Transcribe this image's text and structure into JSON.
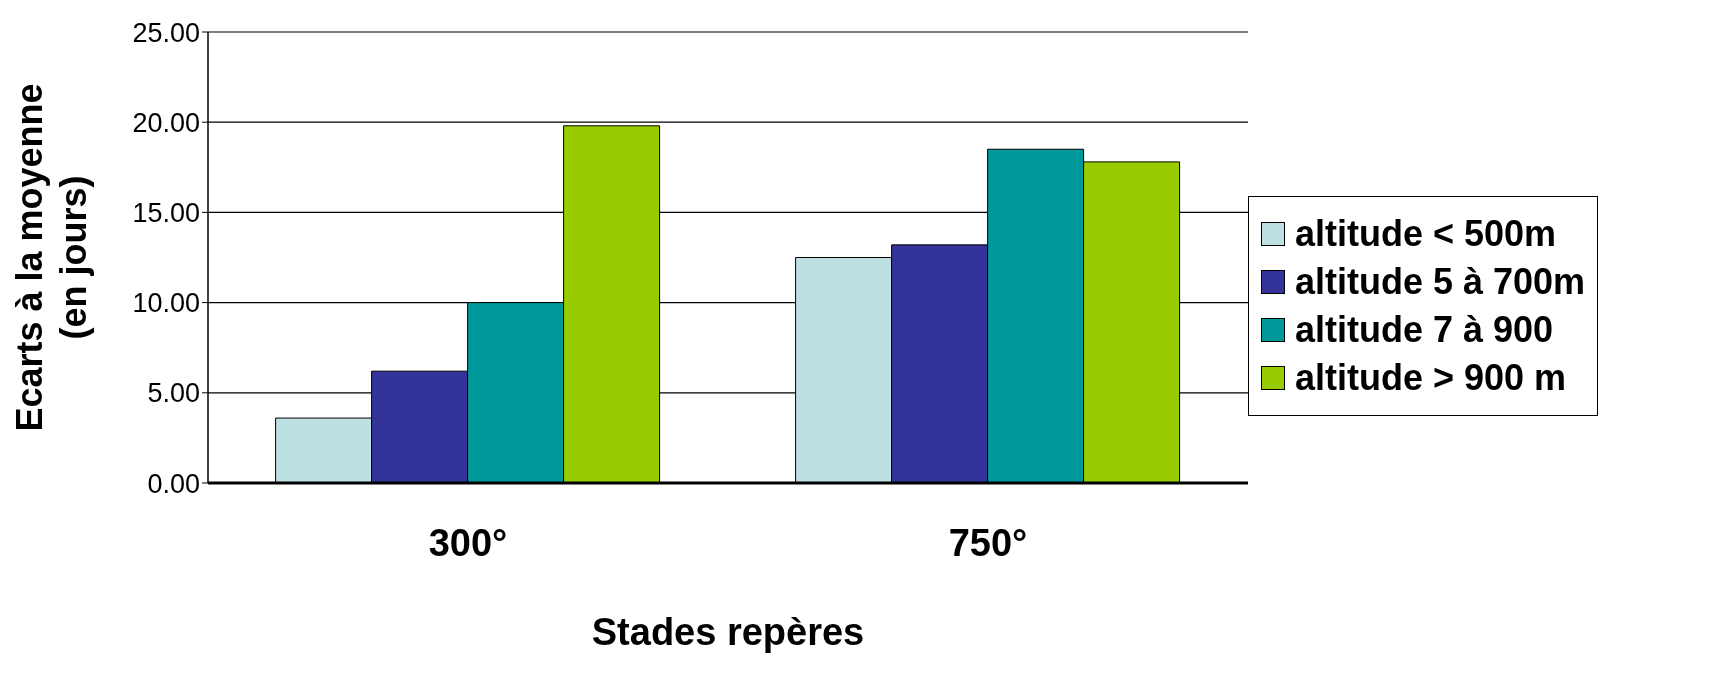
{
  "chart_data": {
    "type": "bar",
    "xlabel": "Stades repères",
    "ylabel": "Ecarts à la moyenne\n(en jours)",
    "categories": [
      "300°",
      "750°"
    ],
    "series": [
      {
        "name": "altitude < 500m",
        "color": "#bde0e3",
        "values": [
          3.6,
          12.5
        ]
      },
      {
        "name": "altitude 5 à 700m",
        "color": "#343399",
        "values": [
          6.2,
          13.2
        ]
      },
      {
        "name": "altitude 7 à 900",
        "color": "#009999",
        "values": [
          10.0,
          18.5
        ]
      },
      {
        "name": "altitude > 900 m",
        "color": "#99cc00",
        "values": [
          19.8,
          17.8
        ]
      }
    ],
    "ylim": [
      0,
      25
    ],
    "yticks": [
      {
        "value": 0,
        "label": "0.00"
      },
      {
        "value": 5,
        "label": "5.00"
      },
      {
        "value": 10,
        "label": "10.00"
      },
      {
        "value": 15,
        "label": "15.00"
      },
      {
        "value": 20,
        "label": "20.00"
      },
      {
        "value": 25,
        "label": "25.00"
      }
    ],
    "grid": "y",
    "legend": "right"
  }
}
